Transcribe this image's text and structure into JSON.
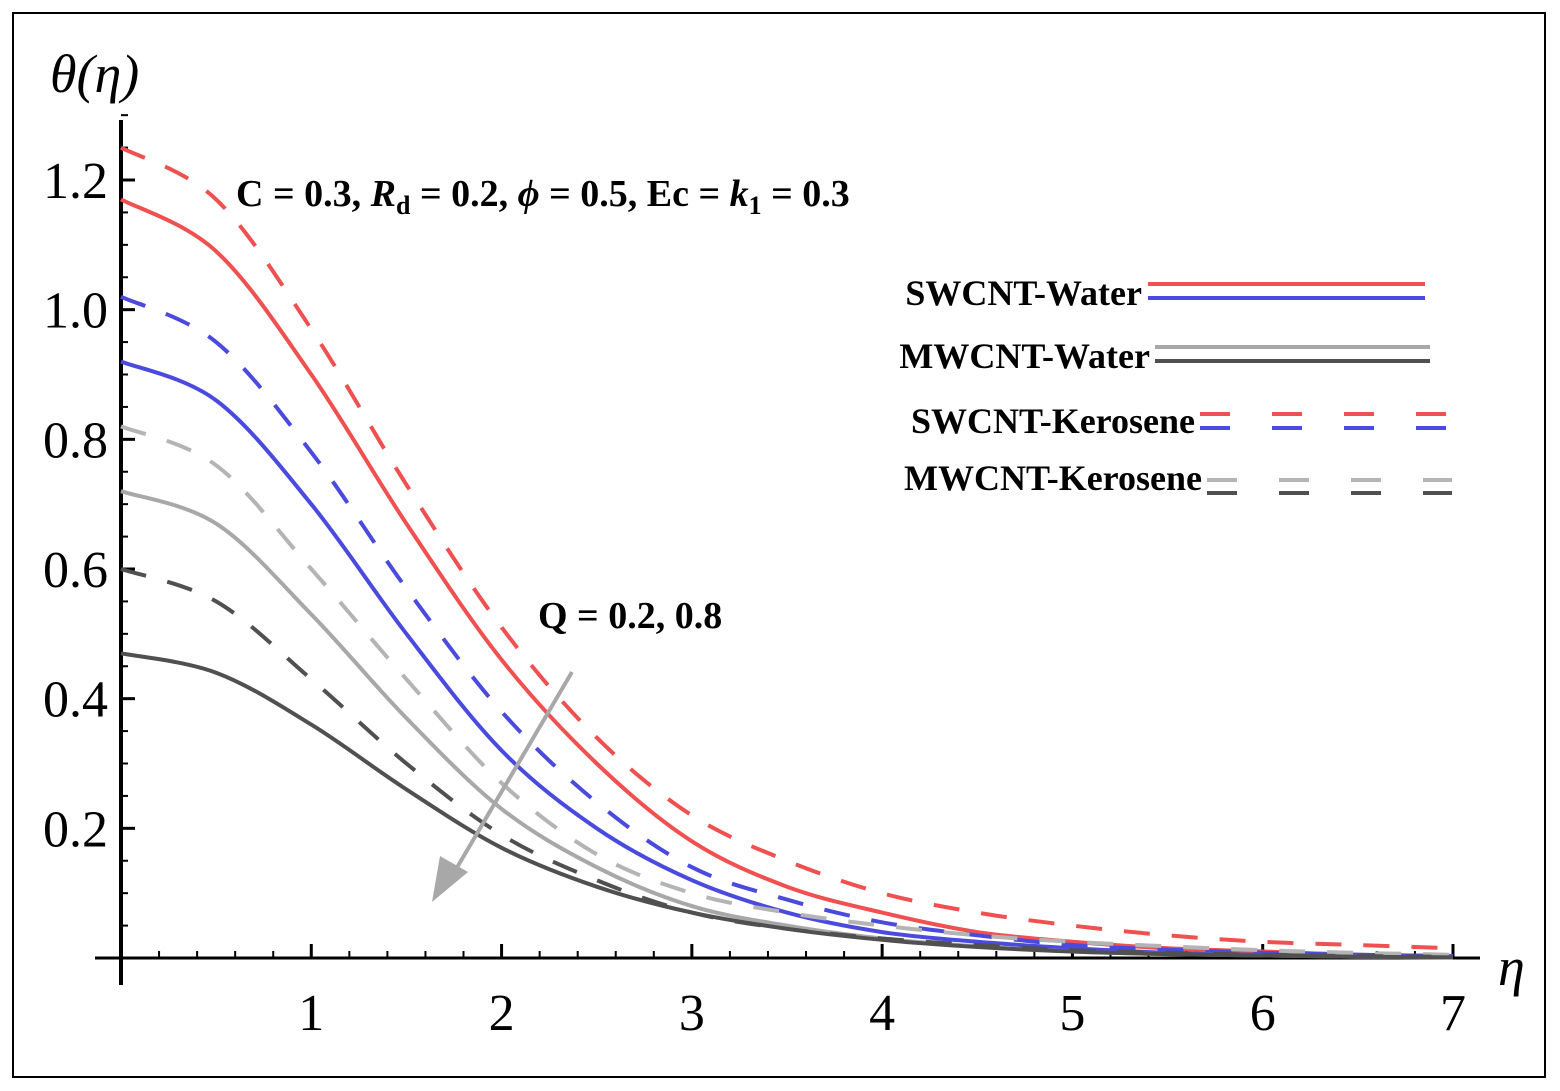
{
  "chart_data": {
    "type": "line",
    "xlabel": "η",
    "ylabel": "θ(η)",
    "xlim": [
      0,
      7.2
    ],
    "ylim": [
      0,
      1.3
    ],
    "x_ticks": [
      "1",
      "2",
      "3",
      "4",
      "5",
      "6",
      "7"
    ],
    "y_ticks": [
      "0.2",
      "0.4",
      "0.6",
      "0.8",
      "1.0",
      "1.2"
    ],
    "annotation_params": {
      "C": "C = 0.3,",
      "Rd_symbol": "R",
      "Rd_sub": "d",
      "Rd_value": "= 0.2,",
      "phi": "ϕ",
      "phi_value": "= 0.5, Ec =",
      "k": "k",
      "k_sub": "1",
      "k_value": "= 0.3"
    },
    "annotation_Q": "Q = 0.2, 0.8",
    "legend": [
      {
        "label": "SWCNT-Water",
        "style": "solid",
        "colors": [
          "#f05050",
          "#4a4adf"
        ]
      },
      {
        "label": "MWCNT-Water",
        "style": "solid",
        "colors": [
          "#a8a8a8",
          "#505050"
        ]
      },
      {
        "label": "SWCNT-Kerosene",
        "style": "dashed",
        "colors": [
          "#f05050",
          "#4a4adf"
        ]
      },
      {
        "label": "MWCNT-Kerosene",
        "style": "dashed",
        "colors": [
          "#b4b4b4",
          "#505050"
        ]
      }
    ],
    "series": [
      {
        "name": "SWCNT-Water Q=0.2",
        "style": "solid",
        "color": "#f05050",
        "x": [
          0,
          0.5,
          1,
          1.5,
          2,
          2.5,
          3,
          3.5,
          4,
          4.5,
          5,
          5.5,
          6,
          6.5,
          7
        ],
        "y": [
          1.17,
          1.09,
          0.9,
          0.67,
          0.46,
          0.3,
          0.18,
          0.11,
          0.07,
          0.04,
          0.025,
          0.015,
          0.01,
          0.005,
          0.003
        ]
      },
      {
        "name": "SWCNT-Kerosene Q=0.2",
        "style": "dashed",
        "color": "#f05050",
        "x": [
          0,
          0.5,
          1,
          1.5,
          2,
          2.5,
          3,
          3.5,
          4,
          4.5,
          5,
          5.5,
          6,
          6.5,
          7
        ],
        "y": [
          1.25,
          1.17,
          0.97,
          0.73,
          0.51,
          0.34,
          0.22,
          0.15,
          0.1,
          0.07,
          0.05,
          0.035,
          0.025,
          0.02,
          0.015
        ]
      },
      {
        "name": "SWCNT-Water Q=0.8",
        "style": "solid",
        "color": "#4a4adf",
        "x": [
          0,
          0.5,
          1,
          1.5,
          2,
          2.5,
          3,
          3.5,
          4,
          4.5,
          5,
          5.5,
          6,
          6.5,
          7
        ],
        "y": [
          0.92,
          0.86,
          0.7,
          0.5,
          0.32,
          0.2,
          0.12,
          0.07,
          0.04,
          0.025,
          0.015,
          0.008,
          0.005,
          0.003,
          0.002
        ]
      },
      {
        "name": "SWCNT-Kerosene Q=0.8",
        "style": "dashed",
        "color": "#4a4adf",
        "x": [
          0,
          0.5,
          1,
          1.5,
          2,
          2.5,
          3,
          3.5,
          4,
          4.5,
          5,
          5.5,
          6,
          6.5,
          7
        ],
        "y": [
          1.02,
          0.95,
          0.78,
          0.57,
          0.38,
          0.24,
          0.14,
          0.09,
          0.055,
          0.035,
          0.02,
          0.013,
          0.008,
          0.005,
          0.003
        ]
      },
      {
        "name": "MWCNT-Kerosene Q=0.2",
        "style": "dashed",
        "color": "#b4b4b4",
        "x": [
          0,
          0.5,
          1,
          1.5,
          2,
          2.5,
          3,
          3.5,
          4,
          4.5,
          5,
          5.5,
          6,
          6.5,
          7
        ],
        "y": [
          0.82,
          0.76,
          0.6,
          0.43,
          0.27,
          0.16,
          0.1,
          0.07,
          0.05,
          0.035,
          0.025,
          0.018,
          0.012,
          0.008,
          0.005
        ]
      },
      {
        "name": "MWCNT-Water Q=0.2",
        "style": "solid",
        "color": "#a8a8a8",
        "x": [
          0,
          0.5,
          1,
          1.5,
          2,
          2.5,
          3,
          3.5,
          4,
          4.5,
          5,
          5.5,
          6,
          6.5,
          7
        ],
        "y": [
          0.72,
          0.67,
          0.53,
          0.37,
          0.23,
          0.14,
          0.08,
          0.05,
          0.03,
          0.018,
          0.01,
          0.006,
          0.004,
          0.002,
          0.001
        ]
      },
      {
        "name": "MWCNT-Kerosene Q=0.8",
        "style": "dashed",
        "color": "#505050",
        "x": [
          0,
          0.5,
          1,
          1.5,
          2,
          2.5,
          3,
          3.5,
          4,
          4.5,
          5,
          5.5,
          6,
          6.5,
          7
        ],
        "y": [
          0.6,
          0.55,
          0.43,
          0.3,
          0.19,
          0.12,
          0.07,
          0.045,
          0.03,
          0.02,
          0.012,
          0.008,
          0.005,
          0.003,
          0.002
        ]
      },
      {
        "name": "MWCNT-Water Q=0.8",
        "style": "solid",
        "color": "#505050",
        "x": [
          0,
          0.5,
          1,
          1.5,
          2,
          2.5,
          3,
          3.5,
          4,
          4.5,
          5,
          5.5,
          6,
          6.5,
          7
        ],
        "y": [
          0.47,
          0.44,
          0.36,
          0.26,
          0.17,
          0.11,
          0.07,
          0.045,
          0.028,
          0.017,
          0.01,
          0.006,
          0.004,
          0.002,
          0.001
        ]
      }
    ]
  }
}
